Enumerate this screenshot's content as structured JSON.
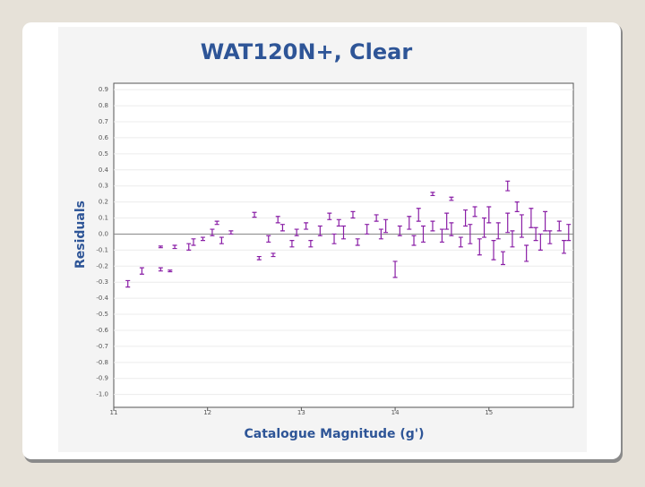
{
  "chart_data": {
    "type": "scatter",
    "title": "WAT120N+, Clear",
    "x_label": "Catalogue Magnitude (g')",
    "y_label": "Residuals",
    "xlim": [
      11,
      15.9
    ],
    "xticks": [
      11,
      12,
      13,
      14,
      15
    ],
    "ylim": [
      -1.08,
      0.94
    ],
    "yticks": [
      {
        "value": -1.0,
        "label": "-1.0"
      },
      -0.9,
      -0.8,
      -0.7,
      -0.6,
      -0.5,
      -0.4,
      -0.3,
      -0.2,
      -0.1,
      {
        "value": 0,
        "label": "0.0"
      },
      0.1,
      0.2,
      0.3,
      0.4,
      0.5,
      0.6,
      0.7,
      0.8,
      0.9
    ],
    "grid": true,
    "series": [
      {
        "color": "#8a1fa6",
        "x": [
          11.15,
          11.3,
          11.5,
          11.6,
          11.5,
          11.65,
          11.8,
          11.85,
          11.95,
          12.05,
          12.1,
          12.15,
          12.25,
          12.5,
          12.55,
          12.65,
          12.7,
          12.75,
          12.8,
          12.9,
          12.95,
          13.05,
          13.1,
          13.2,
          13.3,
          13.35,
          13.4,
          13.45,
          13.55,
          13.6,
          13.7,
          13.8,
          13.85,
          13.9,
          14.0,
          14.05,
          14.15,
          14.2,
          14.25,
          14.3,
          14.4,
          14.5,
          14.55,
          14.6,
          14.7,
          14.75,
          14.8,
          14.85,
          14.9,
          14.95,
          15.0,
          15.05,
          15.1,
          15.15,
          15.2,
          15.25,
          15.3,
          15.35,
          15.4,
          15.45,
          15.5,
          15.55,
          15.6,
          15.65,
          15.75,
          15.8,
          15.85,
          14.4,
          14.6,
          15.2
        ],
        "values": [
          -0.31,
          -0.23,
          -0.22,
          -0.23,
          -0.08,
          -0.08,
          -0.08,
          -0.05,
          -0.03,
          0.01,
          0.07,
          -0.04,
          0.01,
          0.12,
          -0.15,
          -0.03,
          -0.13,
          0.09,
          0.04,
          -0.06,
          0.01,
          0.05,
          -0.06,
          0.02,
          0.11,
          -0.03,
          0.07,
          0.01,
          0.12,
          -0.05,
          0.03,
          0.1,
          0.0,
          0.05,
          -0.22,
          0.02,
          0.07,
          -0.04,
          0.12,
          0.0,
          0.05,
          -0.01,
          0.08,
          0.03,
          -0.05,
          0.1,
          0.0,
          0.14,
          -0.08,
          0.04,
          0.12,
          -0.1,
          0.02,
          -0.15,
          0.07,
          -0.03,
          0.17,
          0.05,
          -0.12,
          0.1,
          0.0,
          -0.05,
          0.08,
          -0.02,
          0.05,
          -0.08,
          0.01,
          0.25,
          0.22,
          0.3
        ],
        "errors": [
          0.02,
          0.02,
          0.01,
          0.005,
          0.005,
          0.01,
          0.02,
          0.02,
          0.01,
          0.02,
          0.01,
          0.02,
          0.01,
          0.015,
          0.01,
          0.02,
          0.01,
          0.02,
          0.02,
          0.02,
          0.02,
          0.02,
          0.02,
          0.03,
          0.02,
          0.03,
          0.02,
          0.04,
          0.02,
          0.02,
          0.03,
          0.02,
          0.03,
          0.04,
          0.05,
          0.03,
          0.04,
          0.03,
          0.04,
          0.05,
          0.03,
          0.04,
          0.05,
          0.04,
          0.03,
          0.05,
          0.06,
          0.03,
          0.05,
          0.06,
          0.05,
          0.06,
          0.05,
          0.04,
          0.06,
          0.05,
          0.03,
          0.07,
          0.05,
          0.06,
          0.04,
          0.05,
          0.06,
          0.04,
          0.03,
          0.04,
          0.05,
          0.01,
          0.01,
          0.03
        ]
      }
    ]
  }
}
